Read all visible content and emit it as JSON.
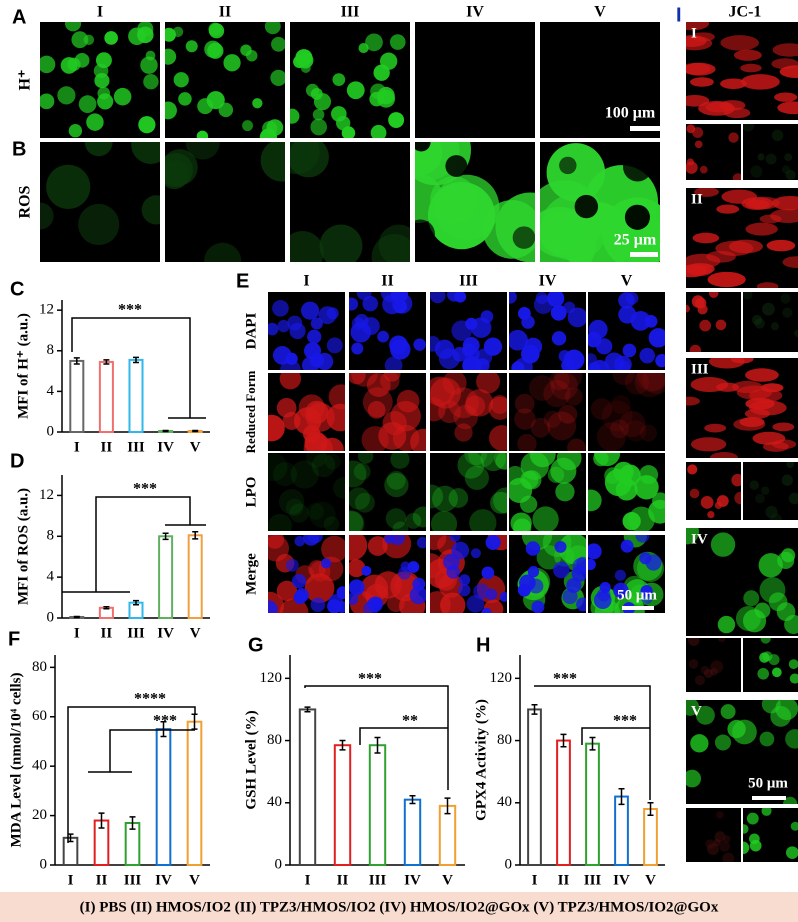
{
  "figure": {
    "panel_labels": [
      "A",
      "B",
      "C",
      "D",
      "E",
      "F",
      "G",
      "H",
      "I"
    ],
    "ab_columns": [
      "I",
      "II",
      "III",
      "IV",
      "V"
    ],
    "ab_rows": [
      "H⁺",
      "ROS"
    ],
    "scale_bars": [
      "100 μm",
      "25 μm",
      "50 μm",
      "50 μm"
    ],
    "e_columns": [
      "I",
      "II",
      "III",
      "IV",
      "V"
    ],
    "e_rows": [
      "DAPI",
      "Reduced Form",
      "LPO",
      "Merge"
    ],
    "jc1_title": "JC-1",
    "jc1_groups": [
      "I",
      "II",
      "III",
      "IV",
      "V"
    ],
    "legend": "(I) PBS  (II) HMOS/IO2  (II) TPZ3/HMOS/IO2  (IV) HMOS/IO2@GOx  (V) TPZ3/HMOS/IO2@GOx"
  },
  "chart_data": [
    {
      "type": "bar",
      "ylabel": "MFI of H⁺ (a.u.)",
      "categories": [
        "I",
        "II",
        "III",
        "IV",
        "V"
      ],
      "values": [
        7.0,
        6.9,
        7.1,
        0.1,
        0.1
      ],
      "errors": [
        0.3,
        0.2,
        0.25,
        0.05,
        0.05
      ],
      "colors": [
        "#666666",
        "#f07070",
        "#30b8e8",
        "#60b060",
        "#f0a040"
      ],
      "ylim": [
        0,
        13
      ],
      "yticks": [
        0,
        4,
        8,
        12
      ],
      "annotations": [
        "***"
      ]
    },
    {
      "type": "bar",
      "ylabel": "MFI of ROS (a.u.)",
      "categories": [
        "I",
        "II",
        "III",
        "IV",
        "V"
      ],
      "values": [
        0.1,
        1.0,
        1.5,
        8.0,
        8.1
      ],
      "errors": [
        0.05,
        0.1,
        0.2,
        0.3,
        0.35
      ],
      "colors": [
        "#666666",
        "#f07070",
        "#30b8e8",
        "#60b060",
        "#f0a040"
      ],
      "ylim": [
        0,
        14
      ],
      "yticks": [
        0,
        4,
        8,
        12
      ],
      "annotations": [
        "***"
      ]
    },
    {
      "type": "bar",
      "ylabel": "MDA Level (nmol/10⁴ cells)",
      "categories": [
        "I",
        "II",
        "III",
        "IV",
        "V"
      ],
      "values": [
        11,
        18,
        17,
        55,
        58
      ],
      "errors": [
        1.5,
        3,
        2.5,
        3,
        3
      ],
      "colors": [
        "#444444",
        "#e02020",
        "#30a030",
        "#1070d0",
        "#f0a030"
      ],
      "ylim": [
        0,
        85
      ],
      "yticks": [
        0,
        20,
        40,
        60,
        80
      ],
      "annotations": [
        "****",
        "***"
      ]
    },
    {
      "type": "bar",
      "ylabel": "GSH Level (%)",
      "categories": [
        "I",
        "II",
        "III",
        "IV",
        "V"
      ],
      "values": [
        100,
        77,
        77,
        42,
        38
      ],
      "errors": [
        1.5,
        3,
        5,
        2.5,
        5
      ],
      "colors": [
        "#444444",
        "#e02020",
        "#30a030",
        "#1070d0",
        "#f0a030"
      ],
      "ylim": [
        0,
        135
      ],
      "yticks": [
        0,
        40,
        80,
        120
      ],
      "annotations": [
        "***",
        "**"
      ]
    },
    {
      "type": "bar",
      "ylabel": "GPX4 Activity (%)",
      "categories": [
        "I",
        "II",
        "III",
        "IV",
        "V"
      ],
      "values": [
        100,
        80,
        78,
        44,
        36
      ],
      "errors": [
        3,
        4,
        4,
        5,
        4
      ],
      "colors": [
        "#444444",
        "#e02020",
        "#30a030",
        "#1070d0",
        "#f0a030"
      ],
      "ylim": [
        0,
        135
      ],
      "yticks": [
        0,
        40,
        80,
        120
      ],
      "annotations": [
        "***",
        "***"
      ]
    }
  ]
}
